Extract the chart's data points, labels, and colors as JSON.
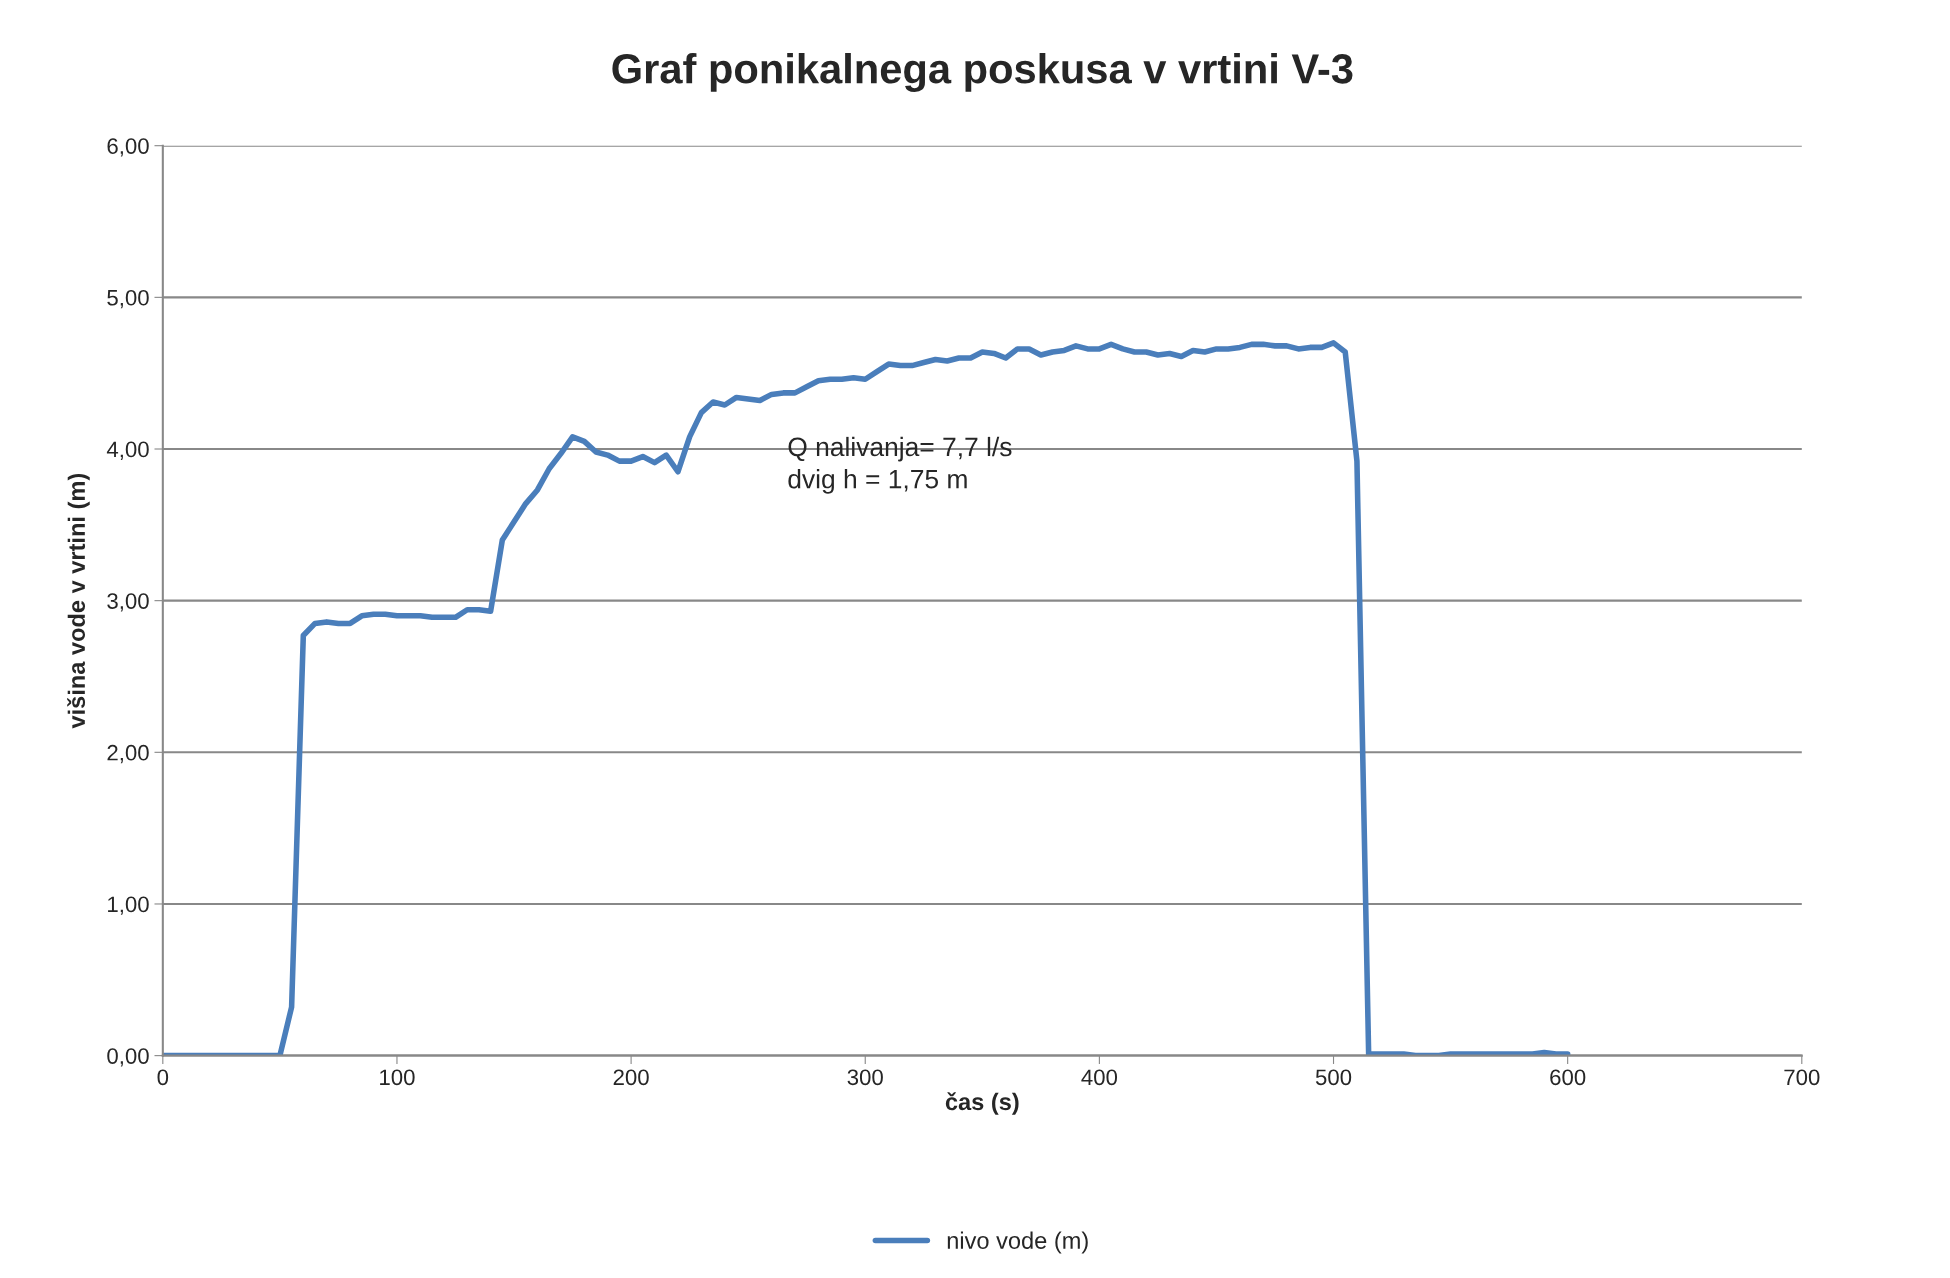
{
  "chart_data": {
    "type": "line",
    "title": "Graf ponikalnega poskusa v vrtini V-3",
    "xlabel": "čas (s)",
    "ylabel": "višina vode v vrtini (m)",
    "x": [
      0,
      5,
      10,
      15,
      20,
      25,
      30,
      35,
      40,
      45,
      50,
      55,
      60,
      65,
      70,
      75,
      80,
      85,
      90,
      95,
      100,
      105,
      110,
      115,
      120,
      125,
      130,
      135,
      140,
      145,
      150,
      155,
      160,
      165,
      170,
      175,
      180,
      185,
      190,
      195,
      200,
      205,
      210,
      215,
      220,
      225,
      230,
      235,
      240,
      245,
      250,
      255,
      260,
      265,
      270,
      275,
      280,
      285,
      290,
      295,
      300,
      305,
      310,
      315,
      320,
      325,
      330,
      335,
      340,
      345,
      350,
      355,
      360,
      365,
      370,
      375,
      380,
      385,
      390,
      395,
      400,
      405,
      410,
      415,
      420,
      425,
      430,
      435,
      440,
      445,
      450,
      455,
      460,
      465,
      470,
      475,
      480,
      485,
      490,
      495,
      500,
      505,
      510,
      515,
      520,
      525,
      530,
      535,
      540,
      545,
      550,
      555,
      560,
      565,
      570,
      575,
      580,
      585,
      590,
      595,
      600
    ],
    "series": [
      {
        "name": "nivo vode (m)",
        "color": "#4a7ebb",
        "values": [
          0.0,
          0.0,
          0.0,
          0.0,
          0.0,
          0.0,
          0.0,
          0.0,
          0.0,
          0.0,
          0.0,
          0.32,
          2.77,
          2.85,
          2.86,
          2.85,
          2.85,
          2.9,
          2.91,
          2.91,
          2.9,
          2.9,
          2.9,
          2.89,
          2.89,
          2.89,
          2.94,
          2.94,
          2.93,
          3.4,
          3.52,
          3.64,
          3.73,
          3.87,
          3.97,
          4.08,
          4.05,
          3.98,
          3.96,
          3.92,
          3.92,
          3.95,
          3.91,
          3.96,
          3.85,
          4.08,
          4.24,
          4.31,
          4.29,
          4.34,
          4.33,
          4.32,
          4.36,
          4.37,
          4.37,
          4.41,
          4.45,
          4.46,
          4.46,
          4.47,
          4.46,
          4.51,
          4.56,
          4.55,
          4.55,
          4.57,
          4.59,
          4.58,
          4.6,
          4.6,
          4.64,
          4.63,
          4.6,
          4.66,
          4.66,
          4.62,
          4.64,
          4.65,
          4.68,
          4.66,
          4.66,
          4.69,
          4.66,
          4.64,
          4.64,
          4.62,
          4.63,
          4.61,
          4.65,
          4.64,
          4.66,
          4.66,
          4.67,
          4.69,
          4.69,
          4.68,
          4.68,
          4.66,
          4.67,
          4.67,
          4.7,
          4.64,
          3.92,
          0.01,
          0.01,
          0.01,
          0.01,
          0.0,
          0.0,
          0.0,
          0.01,
          0.01,
          0.01,
          0.01,
          0.01,
          0.01,
          0.01,
          0.01,
          0.02,
          0.01,
          0.01
        ]
      }
    ],
    "annotations": [
      "Q nalivanja= 7,7 l/s\ndvig h = 1,75 m"
    ],
    "xlim": [
      0,
      700
    ],
    "xticks": [
      0,
      100,
      200,
      300,
      400,
      500,
      600,
      700
    ],
    "ylim": [
      0,
      6
    ],
    "yticks": [
      {
        "value": 0,
        "label": "0,00"
      },
      {
        "value": 1,
        "label": "1,00"
      },
      {
        "value": 2,
        "label": "2,00"
      },
      {
        "value": 3,
        "label": "3,00"
      },
      {
        "value": 4,
        "label": "4,00"
      },
      {
        "value": 5,
        "label": "5,00"
      },
      {
        "value": 6,
        "label": "6,00"
      }
    ],
    "grid": "y",
    "legend": "bottom",
    "marker": "none",
    "line_style": "solid"
  }
}
